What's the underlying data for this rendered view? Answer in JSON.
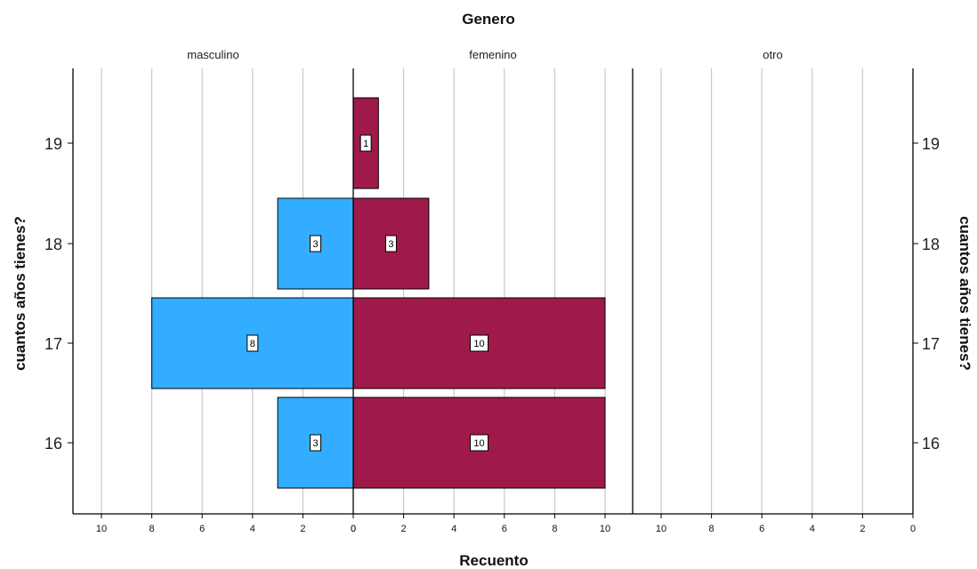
{
  "chart_data": {
    "type": "bar",
    "orientation": "horizontal",
    "title": "Genero",
    "xlabel": "Recuento",
    "ylabel": "cuantos años tienes?",
    "categories": [
      "16",
      "17",
      "18",
      "19"
    ],
    "panels": [
      {
        "name": "masculino",
        "direction": "left",
        "xlim": [
          0,
          10
        ],
        "ticks": [
          10,
          8,
          6,
          4,
          2,
          0
        ],
        "color": "#33adff",
        "values": [
          3,
          8,
          3,
          0
        ]
      },
      {
        "name": "femenino",
        "direction": "right",
        "xlim": [
          0,
          10
        ],
        "ticks": [
          0,
          2,
          4,
          6,
          8,
          10
        ],
        "color": "#a0194b",
        "values": [
          10,
          10,
          3,
          1
        ]
      },
      {
        "name": "otro",
        "direction": "left",
        "xlim": [
          0,
          10
        ],
        "ticks": [
          10,
          8,
          6,
          4,
          2,
          0
        ],
        "color": "#888888",
        "values": [
          0,
          0,
          0,
          0
        ]
      }
    ],
    "grid": true,
    "data_labels": true
  }
}
